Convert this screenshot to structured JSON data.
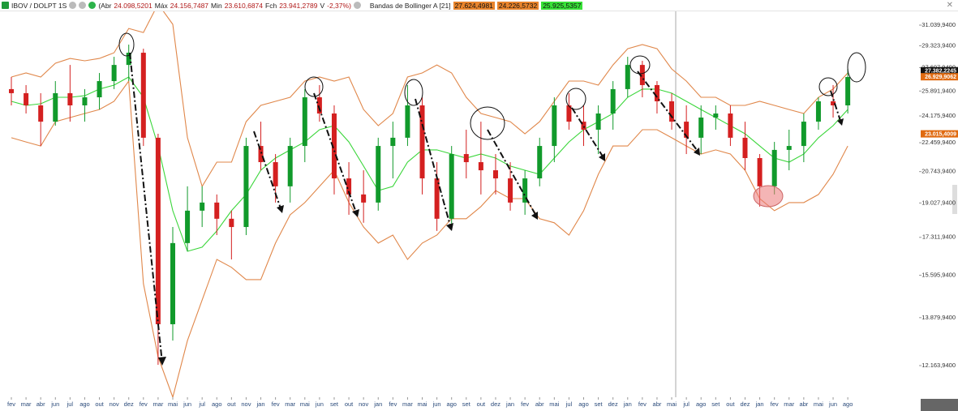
{
  "header": {
    "symbol": "IBOV / DOLPT 1S",
    "open_label": "(Abr",
    "open": "24.098,5201",
    "high_label": "Máx",
    "high": "24.156,7487",
    "low_label": "Min",
    "low": "23.610,6874",
    "close_label": "Fch",
    "close": "23.941,2789",
    "var_label": "V",
    "var": "-2,37%)",
    "indicator": "Bandas de Bollinger A [21]",
    "upper": "27.624,4981",
    "lower": "24.226,5732",
    "mid": "25.925,5357"
  },
  "chart_data": {
    "type": "candlestick",
    "log_scale": true,
    "categories": [
      "fev",
      "mar",
      "abr",
      "jun",
      "jul",
      "ago",
      "out",
      "nov",
      "dez",
      "fev",
      "mar",
      "mai",
      "jun",
      "jul",
      "ago",
      "out",
      "nov",
      "jan",
      "fev",
      "mar",
      "mai",
      "jun",
      "set",
      "out",
      "nov",
      "jan",
      "fev",
      "mar",
      "mai",
      "jun",
      "ago",
      "set",
      "out",
      "dez",
      "jan",
      "fev",
      "abr",
      "mai",
      "jul",
      "ago",
      "set",
      "dez",
      "jan",
      "fev",
      "abr",
      "mai",
      "jul",
      "ago",
      "set",
      "out",
      "dez",
      "jan",
      "fev",
      "mar",
      "abr",
      "mai",
      "jun",
      "ago"
    ],
    "open": [
      26030,
      25740,
      24890,
      23800,
      25740,
      24890,
      25450,
      26610,
      27820,
      28770,
      22770,
      13630,
      17040,
      18630,
      19050,
      18220,
      17810,
      22260,
      21290,
      19920,
      22260,
      25450,
      24340,
      20360,
      19480,
      19050,
      22260,
      22770,
      24890,
      20360,
      18220,
      21770,
      21290,
      20820,
      20360,
      19050,
      20360,
      22260,
      24890,
      23800,
      23280,
      24340,
      26030,
      27820,
      26320,
      25170,
      23800,
      22770,
      24070,
      24340,
      22770,
      21530,
      19920,
      22020,
      22260,
      23800,
      25170,
      24890
    ],
    "high": [
      26910,
      26320,
      25740,
      26610,
      27820,
      26030,
      27210,
      28450,
      29420,
      29090,
      23020,
      17810,
      19920,
      19920,
      19480,
      18630,
      22770,
      23800,
      21770,
      22770,
      26030,
      26320,
      24890,
      21290,
      20820,
      22770,
      23800,
      26320,
      25450,
      21290,
      22260,
      23280,
      23800,
      21770,
      21290,
      20820,
      22770,
      25450,
      25740,
      24890,
      24890,
      26610,
      28450,
      28140,
      26610,
      25740,
      24890,
      24890,
      24890,
      24890,
      23800,
      21770,
      22510,
      23280,
      24340,
      25450,
      26320,
      27520
    ],
    "low": [
      24890,
      24340,
      22260,
      23540,
      23800,
      23800,
      24610,
      26030,
      26610,
      22260,
      12190,
      13030,
      16660,
      17810,
      17420,
      16290,
      17420,
      20820,
      19050,
      19050,
      21290,
      23800,
      19480,
      18420,
      18020,
      18630,
      20360,
      22260,
      19480,
      17620,
      17810,
      20360,
      19480,
      19480,
      18630,
      18420,
      19920,
      21290,
      23280,
      22260,
      21770,
      23280,
      25450,
      25450,
      24340,
      23280,
      21770,
      21770,
      23280,
      22260,
      20820,
      18840,
      19480,
      20820,
      21290,
      23280,
      24070,
      24340
    ],
    "close": [
      25740,
      24890,
      23800,
      25740,
      24890,
      25450,
      26610,
      27820,
      28770,
      22770,
      13630,
      17040,
      18630,
      19050,
      18220,
      17810,
      22260,
      21290,
      19920,
      22260,
      25450,
      24340,
      20360,
      19480,
      19050,
      22260,
      22770,
      24890,
      20360,
      18220,
      21770,
      21290,
      20820,
      20360,
      19050,
      20360,
      22260,
      24890,
      23800,
      23280,
      24340,
      26030,
      27820,
      26320,
      25170,
      23800,
      22770,
      24070,
      24340,
      22770,
      21530,
      19920,
      22020,
      22260,
      23800,
      25170,
      24890,
      26910
    ],
    "up_color": "#119a2b",
    "down_color": "#d42020",
    "bands": {
      "upper": {
        "color": "#e0874a",
        "values": [
          26910,
          27210,
          26910,
          27950,
          28320,
          28140,
          28320,
          28770,
          30760,
          30420,
          32900,
          31110,
          22770,
          19920,
          21290,
          21290,
          23800,
          24890,
          25170,
          25450,
          26610,
          26910,
          26610,
          26910,
          24610,
          23540,
          24340,
          26910,
          27210,
          27820,
          27210,
          25450,
          24340,
          24070,
          23800,
          23020,
          23800,
          25170,
          26610,
          26610,
          26320,
          27820,
          29090,
          29420,
          29090,
          27520,
          26610,
          25450,
          25450,
          24890,
          24890,
          25170,
          24890,
          24610,
          24340,
          25450,
          26030,
          27210
        ]
      },
      "mid": {
        "color": "#3ad63a",
        "values": [
          25170,
          24890,
          25000,
          25450,
          25450,
          25560,
          26030,
          26320,
          26910,
          25450,
          22260,
          18630,
          16660,
          16850,
          17620,
          18630,
          19480,
          20820,
          21530,
          22020,
          22510,
          23280,
          23540,
          22510,
          21060,
          19690,
          19920,
          21290,
          22020,
          22020,
          21770,
          21530,
          21770,
          21530,
          21060,
          20820,
          20590,
          21530,
          22510,
          23280,
          23800,
          24340,
          25450,
          26030,
          26030,
          25740,
          25170,
          24610,
          24070,
          23540,
          23020,
          22260,
          21530,
          21290,
          21770,
          22770,
          23540,
          24610
        ]
      },
      "lower": {
        "color": "#e0874a",
        "values": [
          22770,
          22510,
          22260,
          23800,
          24070,
          24340,
          24610,
          25170,
          26610,
          15240,
          12460,
          11150,
          13030,
          14570,
          16290,
          15940,
          15410,
          15410,
          17040,
          18420,
          19050,
          19920,
          20820,
          19050,
          17810,
          17040,
          17420,
          16290,
          17040,
          17420,
          18220,
          18220,
          18840,
          19690,
          19260,
          19260,
          18220,
          18020,
          17420,
          18630,
          20590,
          22260,
          22260,
          23280,
          23280,
          22770,
          22260,
          21770,
          22020,
          21770,
          20820,
          19260,
          18630,
          19050,
          19050,
          19480,
          20590,
          22260
        ]
      }
    },
    "ylim": [
      11150,
      32240
    ],
    "yticks": [
      {
        "value": 31039.94,
        "label": "31.039,9400"
      },
      {
        "value": 29323.94,
        "label": "29.323,9400"
      },
      {
        "value": 27607.94,
        "label": "27.607,9400"
      },
      {
        "value": 25891.94,
        "label": "25.891,9400"
      },
      {
        "value": 24175.94,
        "label": "24.175,9400"
      },
      {
        "value": 22459.94,
        "label": "22.459,9400"
      },
      {
        "value": 20743.94,
        "label": "20.743,9400"
      },
      {
        "value": 19027.94,
        "label": "19.027,9400"
      },
      {
        "value": 17311.94,
        "label": "17.311,9400"
      },
      {
        "value": 15595.94,
        "label": "15.595,9400"
      },
      {
        "value": 13879.94,
        "label": "13.879,9400"
      },
      {
        "value": 12163.94,
        "label": "12.163,9400"
      }
    ],
    "price_labels": [
      {
        "value": 27382.2245,
        "label": "27.382,2245",
        "color": "#111111"
      },
      {
        "value": 26929.9062,
        "label": "26.929,9062",
        "color": "#e06a10"
      },
      {
        "value": 23015.4009,
        "label": "23.015,4009",
        "color": "#e06a10"
      }
    ]
  }
}
